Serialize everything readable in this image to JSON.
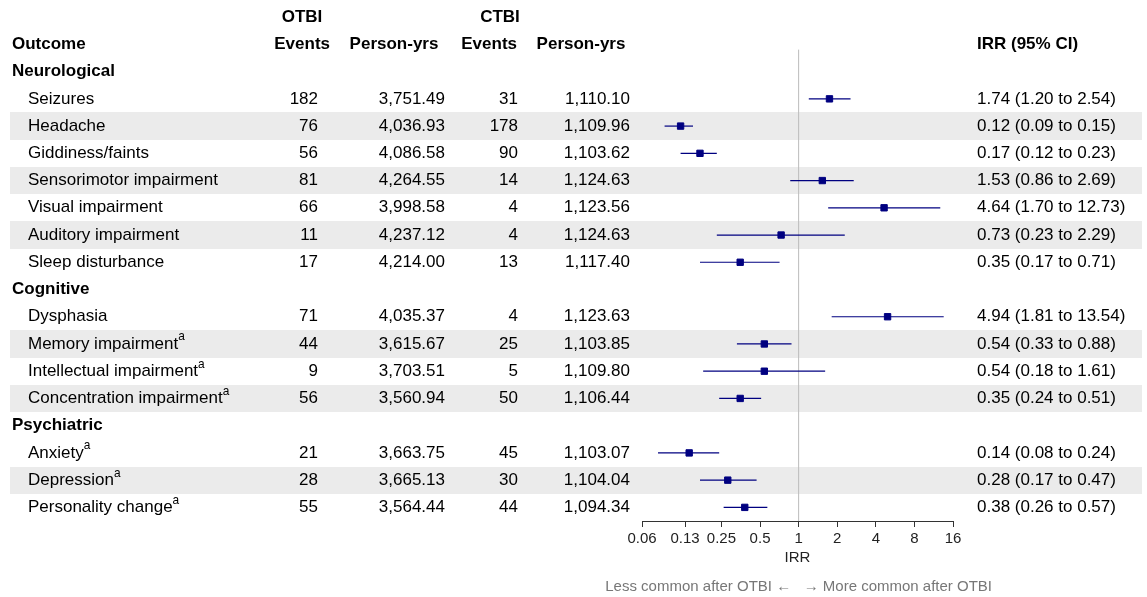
{
  "chart_data": {
    "type": "scatter",
    "orientation": "horizontal",
    "log": "x",
    "grid": false,
    "legend": false,
    "marker": "square",
    "xlabel": "IRR",
    "categories": [
      null,
      null,
      null,
      null,
      null,
      null,
      null,
      null,
      null,
      null,
      null,
      null,
      null,
      null,
      null,
      null,
      null
    ],
    "series": [
      {
        "color": "#000080",
        "values": [
          null,
          1.74,
          0.12,
          0.17,
          1.53,
          4.64,
          0.73,
          0.35,
          null,
          4.94,
          0.54,
          0.54,
          0.35,
          null,
          0.14,
          0.28,
          0.38
        ],
        "errors": [
          null,
          [
            1.2,
            2.54
          ],
          [
            0.09,
            0.15
          ],
          [
            0.12,
            0.23
          ],
          [
            0.86,
            2.69
          ],
          [
            1.7,
            12.73
          ],
          [
            0.23,
            2.29
          ],
          [
            0.17,
            0.71
          ],
          null,
          [
            1.81,
            13.54
          ],
          [
            0.33,
            0.88
          ],
          [
            0.18,
            1.61
          ],
          [
            0.24,
            0.51
          ],
          null,
          [
            0.08,
            0.24
          ],
          [
            0.17,
            0.47
          ],
          [
            0.26,
            0.57
          ]
        ]
      }
    ],
    "xlim": [
      0.06,
      16
    ],
    "xticks": [
      0.06,
      0.13,
      0.25,
      0.5,
      1,
      2,
      4,
      8,
      16
    ],
    "ref_lines": [
      {
        "axis": "x",
        "value": 1,
        "color": "#bbbbbb"
      }
    ],
    "annotations": [
      "Outcome",
      "OTBI",
      "Events",
      "Person-yrs",
      "CTBI",
      "Events",
      "Person-yrs",
      "IRR (95% CI)",
      "Neurological",
      "Seizures",
      "182",
      "3,751.49",
      "31",
      "1,110.10",
      "1.74 (1.20 to 2.54)",
      "Headache",
      "76",
      "4,036.93",
      "178",
      "1,109.96",
      "0.12 (0.09 to 0.15)",
      "Giddiness/faints",
      "56",
      "4,086.58",
      "90",
      "1,103.62",
      "0.17 (0.12 to 0.23)",
      "Sensorimotor impairment",
      "81",
      "4,264.55",
      "14",
      "1,124.63",
      "1.53 (0.86 to 2.69)",
      "Visual impairment",
      "66",
      "3,998.58",
      "4",
      "1,123.56",
      "4.64 (1.70 to 12.73)",
      "Auditory impairment",
      "11",
      "4,237.12",
      "4",
      "1,124.63",
      "0.73 (0.23 to 2.29)",
      "Sleep disturbance",
      "17",
      "4,214.00",
      "13",
      "1,117.40",
      "0.35 (0.17 to 0.71)",
      "Cognitive",
      "Dysphasia",
      "71",
      "4,035.37",
      "4",
      "1,123.63",
      "4.94 (1.81 to 13.54)",
      "Memory impairment$^{a}$",
      "44",
      "3,615.67",
      "25",
      "1,103.85",
      "0.54 (0.33 to 0.88)",
      "Intellectual impairment$^{a}$",
      "9",
      "3,703.51",
      "5",
      "1,109.80",
      "0.54 (0.18 to 1.61)",
      "Concentration impairment$^{a}$",
      "56",
      "3,560.94",
      "50",
      "1,106.44",
      "0.35 (0.24 to 0.51)",
      "Psychiatric",
      "Anxiety$^{a}$",
      "21",
      "3,663.75",
      "45",
      "1,103.07",
      "0.14 (0.08 to 0.24)",
      "Depression$^{a}$",
      "28",
      "3,665.13",
      "30",
      "1,104.04",
      "0.28 (0.17 to 0.47)",
      "Personality change$^{a}$",
      "55",
      "3,564.44",
      "44",
      "1,094.34",
      "0.38 (0.26 to 0.57)",
      "Less common after OTBI ←   → More common after OTBI"
    ]
  }
}
